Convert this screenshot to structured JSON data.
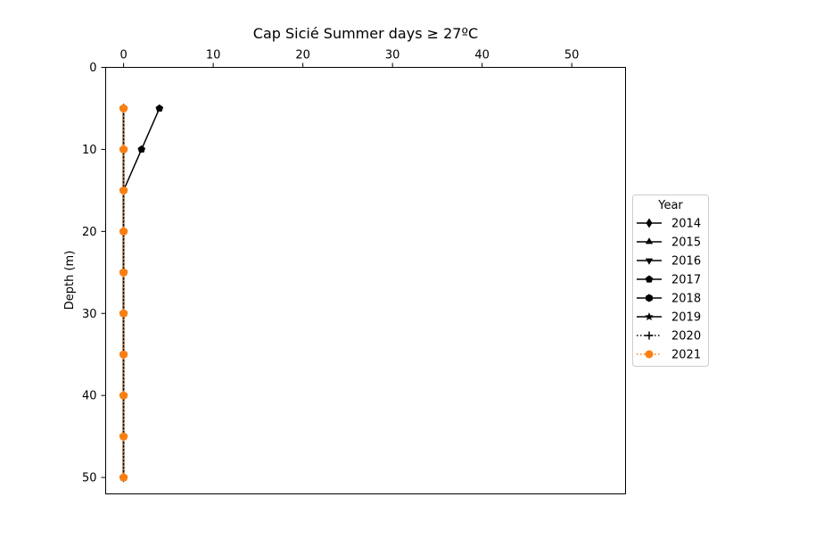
{
  "chart_data": {
    "type": "line",
    "title": "Cap Sicié Summer days ≥ 27ºC",
    "xlabel": "",
    "ylabel": "Depth (m)",
    "xlim": [
      -2,
      56
    ],
    "ylim": [
      52,
      0
    ],
    "x_axis_position": "top",
    "y_inverted": true,
    "xticks": [
      0,
      10,
      20,
      30,
      40,
      50
    ],
    "yticks": [
      0,
      10,
      20,
      30,
      40,
      50
    ],
    "grid": false,
    "legend": {
      "title": "Year",
      "placement": "right-outside"
    },
    "depths": [
      5,
      10,
      15,
      20,
      25,
      30,
      35,
      40,
      45,
      50
    ],
    "series": [
      {
        "name": "2014",
        "color": "#000000",
        "linestyle": "solid",
        "marker": "diamond",
        "values": [
          0,
          0,
          0,
          0,
          0,
          0,
          0,
          0,
          0,
          0
        ]
      },
      {
        "name": "2015",
        "color": "#000000",
        "linestyle": "solid",
        "marker": "triangle-up",
        "values": [
          0,
          0,
          0,
          0,
          0,
          0,
          0,
          0,
          0,
          0
        ]
      },
      {
        "name": "2016",
        "color": "#000000",
        "linestyle": "solid",
        "marker": "triangle-down",
        "values": [
          0,
          0,
          0,
          0,
          0,
          0,
          0,
          0,
          0,
          0
        ]
      },
      {
        "name": "2017",
        "color": "#000000",
        "linestyle": "solid",
        "marker": "pentagon",
        "values": [
          4,
          2,
          0,
          0,
          0,
          0,
          0,
          0,
          0,
          0
        ]
      },
      {
        "name": "2018",
        "color": "#000000",
        "linestyle": "solid",
        "marker": "hexagon",
        "values": [
          0,
          0,
          0,
          0,
          0,
          0,
          0,
          0,
          0,
          0
        ]
      },
      {
        "name": "2019",
        "color": "#000000",
        "linestyle": "solid",
        "marker": "star",
        "values": [
          0,
          0,
          0,
          0,
          0,
          0,
          0,
          0,
          0,
          0
        ]
      },
      {
        "name": "2020",
        "color": "#000000",
        "linestyle": "dotted",
        "marker": "plus",
        "values": [
          0,
          0,
          0,
          0,
          0,
          0,
          0,
          0,
          0,
          0
        ]
      },
      {
        "name": "2021",
        "color": "#ff7f0e",
        "linestyle": "dotted",
        "marker": "circle",
        "values": [
          0,
          0,
          0,
          0,
          0,
          0,
          0,
          0,
          0,
          0
        ]
      }
    ]
  }
}
